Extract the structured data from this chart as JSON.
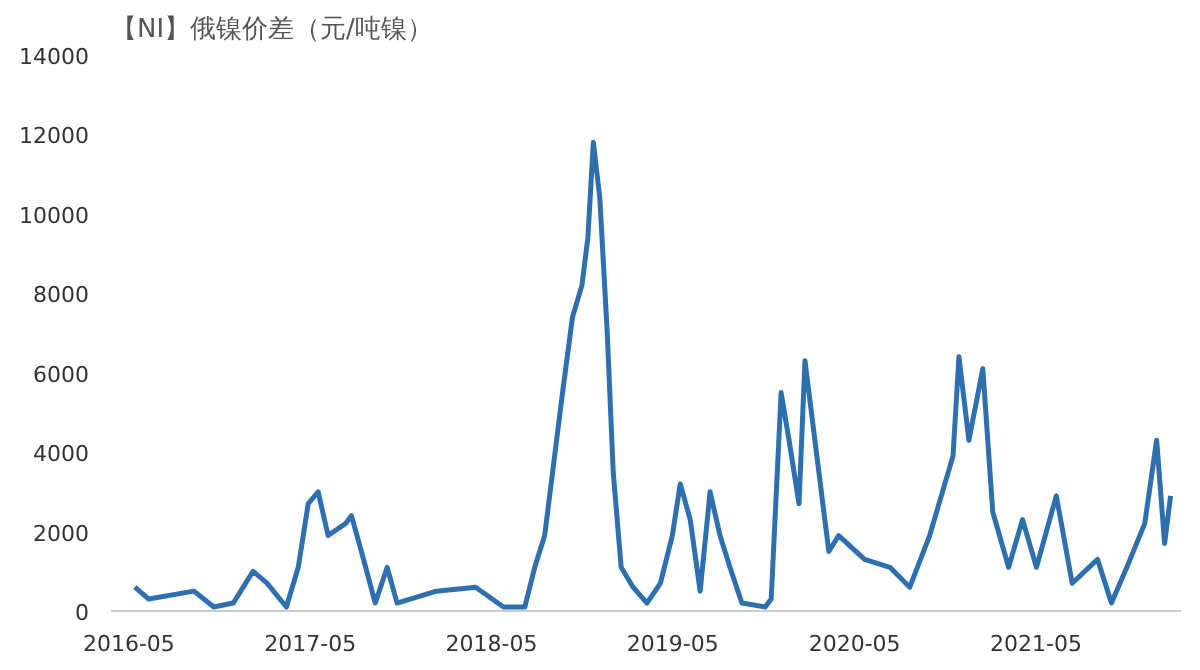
{
  "chart_data": {
    "type": "line",
    "title": "【NI】俄镍价差（元/吨镍）",
    "x": [
      "2016-05-13",
      "2016-06-10",
      "2016-09-09",
      "2016-10-19",
      "2016-11-27",
      "2017-01-06",
      "2017-02-03",
      "2017-03-14",
      "2017-04-07",
      "2017-04-27",
      "2017-05-17",
      "2017-06-06",
      "2017-07-11",
      "2017-07-23",
      "2017-08-12",
      "2017-09-09",
      "2017-10-03",
      "2017-10-23",
      "2018-01-10",
      "2018-03-30",
      "2018-05-25",
      "2018-07-07",
      "2018-07-27",
      "2018-08-16",
      "2018-09-01",
      "2018-09-21",
      "2018-10-11",
      "2018-10-30",
      "2018-11-11",
      "2018-11-22",
      "2018-12-05",
      "2018-12-20",
      "2019-01-01",
      "2019-01-17",
      "2019-02-10",
      "2019-03-10",
      "2019-04-06",
      "2019-04-30",
      "2019-05-16",
      "2019-06-05",
      "2019-06-25",
      "2019-07-15",
      "2019-08-04",
      "2019-08-24",
      "2019-09-17",
      "2019-11-03",
      "2019-11-15",
      "2019-12-05",
      "2019-12-21",
      "2020-01-10",
      "2020-01-22",
      "2020-02-19",
      "2020-03-10",
      "2020-03-30",
      "2020-05-21",
      "2020-07-11",
      "2020-08-20",
      "2020-09-29",
      "2020-11-15",
      "2020-11-27",
      "2020-12-17",
      "2021-01-14",
      "2021-02-03",
      "2021-03-07",
      "2021-04-04",
      "2021-05-02",
      "2021-06-11",
      "2021-07-13",
      "2021-09-02",
      "2021-09-30",
      "2021-10-31",
      "2021-12-06",
      "2021-12-30",
      "2022-01-15",
      "2022-01-27"
    ],
    "series": [
      {
        "color": "#2e6fb0",
        "values": [
          600,
          300,
          500,
          100,
          200,
          1000,
          700,
          100,
          1100,
          2700,
          3000,
          1900,
          2200,
          2400,
          1500,
          200,
          1100,
          200,
          500,
          600,
          100,
          100,
          1100,
          1900,
          3500,
          5500,
          7400,
          8200,
          9400,
          11800,
          10400,
          7000,
          3500,
          1100,
          600,
          200,
          700,
          1900,
          3200,
          2300,
          500,
          3000,
          1900,
          1100,
          200,
          100,
          300,
          5500,
          4300,
          2700,
          6300,
          3500,
          1500,
          1900,
          1300,
          1100,
          600,
          1900,
          3900,
          6400,
          4300,
          6100,
          2500,
          1100,
          2300,
          1100,
          2900,
          700,
          1300,
          200,
          1100,
          2200,
          4300,
          1700,
          2900
        ]
      }
    ],
    "xlim": [
      "2016-03-26",
      "2022-02-17"
    ],
    "xticks": [
      "2016-05",
      "2017-05",
      "2018-05",
      "2019-05",
      "2020-05",
      "2021-05"
    ],
    "ylim": [
      0,
      14000
    ],
    "yticks": [
      0,
      2000,
      4000,
      6000,
      8000,
      10000,
      12000,
      14000
    ],
    "grid": false
  }
}
